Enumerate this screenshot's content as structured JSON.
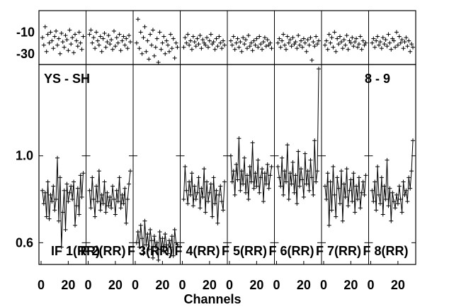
{
  "chart_data": {
    "type": "scatter",
    "baseline_label": "YS - SH",
    "time_label": "8 - 9",
    "xlabel": "Channels",
    "x_ticks": [
      "0",
      "20"
    ],
    "panels_per_row": 8,
    "channels": [
      1,
      2,
      3,
      4,
      5,
      6,
      7,
      8,
      9,
      10,
      11,
      12,
      13,
      14,
      15,
      16,
      17,
      18,
      19,
      20,
      21,
      22,
      23,
      24,
      25,
      26,
      27,
      28,
      29,
      30,
      31
    ],
    "phase": {
      "ylim": [
        -40,
        10
      ],
      "y_ticks": [
        {
          "value": -10,
          "label": "-10"
        },
        {
          "value": -30,
          "label": "-30"
        }
      ],
      "series": [
        {
          "values": [
            -15,
            -22,
            -5,
            -28,
            -12,
            -20,
            -10,
            -18,
            -25,
            -14,
            -9,
            -22,
            -16,
            -30,
            -11,
            -19,
            -24,
            -13,
            -17,
            -27,
            -8,
            -21,
            -15,
            -29,
            -12,
            -18,
            -23,
            -10,
            -20,
            -26,
            -14
          ]
        },
        {
          "values": [
            -12,
            -8,
            -20,
            -15,
            -25,
            -10,
            -18,
            -22,
            -14,
            -28,
            -16,
            -11,
            -24,
            -19,
            -13,
            -21,
            -17,
            -26,
            -9,
            -23,
            -15,
            -20,
            -12,
            -27,
            -18,
            -14,
            -22,
            -16,
            -25,
            -13,
            -19
          ]
        },
        {
          "values": [
            -20,
            2,
            -25,
            -10,
            -30,
            -15,
            -5,
            -28,
            -18,
            -35,
            -12,
            -22,
            -8,
            -32,
            -24,
            -16,
            -38,
            -10,
            -26,
            -20,
            -14,
            -30,
            -18,
            -22,
            -28,
            -12,
            -25,
            -16,
            -34,
            -20,
            -24
          ]
        },
        {
          "values": [
            -24,
            -15,
            -20,
            -12,
            -22,
            -18,
            -26,
            -14,
            -19,
            -23,
            -16,
            -21,
            -13,
            -25,
            -17,
            -20,
            -22,
            -15,
            -24,
            -18,
            -12,
            -21,
            -19,
            -26,
            -16,
            -23,
            -14,
            -20,
            -25,
            -18,
            -22
          ]
        },
        {
          "values": [
            -18,
            -22,
            -14,
            -26,
            -20,
            -16,
            -24,
            -19,
            -28,
            -15,
            -21,
            -17,
            -25,
            -13,
            -23,
            -20,
            -27,
            -18,
            -22,
            -16,
            -24,
            -14,
            -21,
            -26,
            -19,
            -15,
            -23,
            -17,
            -22,
            -20,
            -25
          ]
        },
        {
          "values": [
            -20,
            -16,
            -24,
            -18,
            -12,
            -22,
            -26,
            -14,
            -20,
            -17,
            -23,
            -15,
            -21,
            -19,
            -25,
            -13,
            -22,
            -18,
            -24,
            -16,
            -20,
            -28,
            -17,
            -22,
            -15,
            -36,
            -19,
            -23,
            -14,
            -21,
            -18
          ]
        },
        {
          "values": [
            -22,
            -18,
            -26,
            -12,
            -20,
            -15,
            -24,
            -10,
            -28,
            -16,
            -21,
            -14,
            -19,
            -25,
            -17,
            -22,
            -13,
            -26,
            -18,
            -20,
            -15,
            -23,
            -19,
            -16,
            -24,
            -21,
            -14,
            -26,
            -18,
            -22,
            -20
          ]
        },
        {
          "values": [
            -20,
            -16,
            -24,
            -18,
            -14,
            -22,
            -19,
            -25,
            -15,
            -21,
            -17,
            -23,
            -12,
            -20,
            -26,
            -16,
            -18,
            -24,
            -10,
            -22,
            -14,
            -20,
            -17,
            -25,
            -19,
            -15,
            -23,
            -18,
            -28,
            -21,
            -24
          ]
        }
      ]
    },
    "amplitude": {
      "ylim": [
        0.5,
        1.42
      ],
      "y_ticks": [
        {
          "value": 1.0,
          "label": "1.0"
        },
        {
          "value": 0.6,
          "label": "0.6"
        }
      ],
      "series": [
        {
          "label": "IF 1(RR)",
          "values": [
            0.84,
            0.78,
            0.83,
            0.72,
            0.88,
            0.71,
            0.82,
            0.79,
            0.86,
            0.75,
            0.8,
            0.99,
            0.7,
            0.9,
            0.58,
            0.74,
            0.84,
            0.66,
            0.87,
            0.79,
            0.83,
            0.86,
            0.8,
            0.88,
            0.68,
            0.77,
            0.85,
            0.73,
            0.91,
            0.81,
            0.92
          ]
        },
        {
          "label": "F 2(RR)",
          "values": [
            0.84,
            0.76,
            0.9,
            0.8,
            0.72,
            0.86,
            0.79,
            0.93,
            0.75,
            0.82,
            0.78,
            0.88,
            0.74,
            0.83,
            0.77,
            0.81,
            0.76,
            0.86,
            0.8,
            0.73,
            0.84,
            0.79,
            0.9,
            0.76,
            0.82,
            0.78,
            0.85,
            0.69,
            0.8,
            0.87,
            0.93
          ]
        },
        {
          "label": "F 3(RR)",
          "values": [
            0.6,
            0.65,
            0.58,
            0.68,
            0.62,
            0.55,
            0.7,
            0.59,
            0.64,
            0.57,
            0.66,
            0.61,
            0.53,
            0.63,
            0.58,
            0.6,
            0.52,
            0.65,
            0.57,
            0.62,
            0.56,
            0.64,
            0.59,
            0.55,
            0.61,
            0.58,
            0.63,
            0.54,
            0.66,
            0.6,
            0.59
          ]
        },
        {
          "label": "F 4(RR)",
          "values": [
            0.8,
            0.95,
            0.84,
            0.78,
            0.88,
            0.82,
            0.92,
            0.77,
            0.86,
            0.8,
            0.83,
            0.9,
            0.76,
            0.85,
            0.81,
            0.94,
            0.74,
            0.88,
            0.79,
            0.83,
            0.87,
            0.72,
            0.9,
            0.78,
            0.84,
            0.69,
            0.82,
            0.86,
            0.79,
            0.75,
            0.88
          ]
        },
        {
          "label": "F 5(RR)",
          "values": [
            1.0,
            0.88,
            0.93,
            0.82,
            0.96,
            0.89,
            1.08,
            0.84,
            0.93,
            0.87,
            0.99,
            0.83,
            0.91,
            0.8,
            0.95,
            0.88,
            1.06,
            0.85,
            0.92,
            0.86,
            0.98,
            0.83,
            0.9,
            0.94,
            0.79,
            0.92,
            0.87,
            0.96,
            0.85,
            0.91,
            0.95
          ]
        },
        {
          "label": "F 6(RR)",
          "values": [
            0.95,
            0.9,
            0.86,
            0.99,
            0.82,
            0.93,
            0.88,
            1.05,
            0.8,
            0.92,
            0.87,
            0.97,
            0.83,
            0.91,
            0.78,
            1.02,
            0.86,
            0.94,
            0.89,
            0.81,
            1.01,
            0.87,
            0.93,
            0.84,
            0.98,
            0.9,
            0.82,
            1.07,
            0.88,
            0.93,
            1.4
          ]
        },
        {
          "label": "F 7(RR)",
          "values": [
            0.86,
            0.8,
            0.92,
            0.68,
            0.88,
            0.75,
            0.95,
            0.82,
            0.72,
            0.9,
            0.85,
            0.78,
            0.93,
            0.7,
            0.87,
            0.81,
            0.94,
            0.77,
            0.84,
            0.89,
            0.79,
            0.92,
            0.74,
            0.86,
            0.8,
            0.9,
            0.76,
            0.83,
            0.88,
            0.82,
            0.91
          ]
        },
        {
          "label": "F 8(RR)",
          "values": [
            0.84,
            0.79,
            0.88,
            0.75,
            0.95,
            0.82,
            0.78,
            0.9,
            0.73,
            0.86,
            0.8,
            0.98,
            0.77,
            0.85,
            0.7,
            0.83,
            0.79,
            0.76,
            0.82,
            0.78,
            0.86,
            0.8,
            0.74,
            0.88,
            0.82,
            0.84,
            0.79,
            0.9,
            0.85,
            0.93,
            1.07
          ]
        }
      ]
    }
  }
}
